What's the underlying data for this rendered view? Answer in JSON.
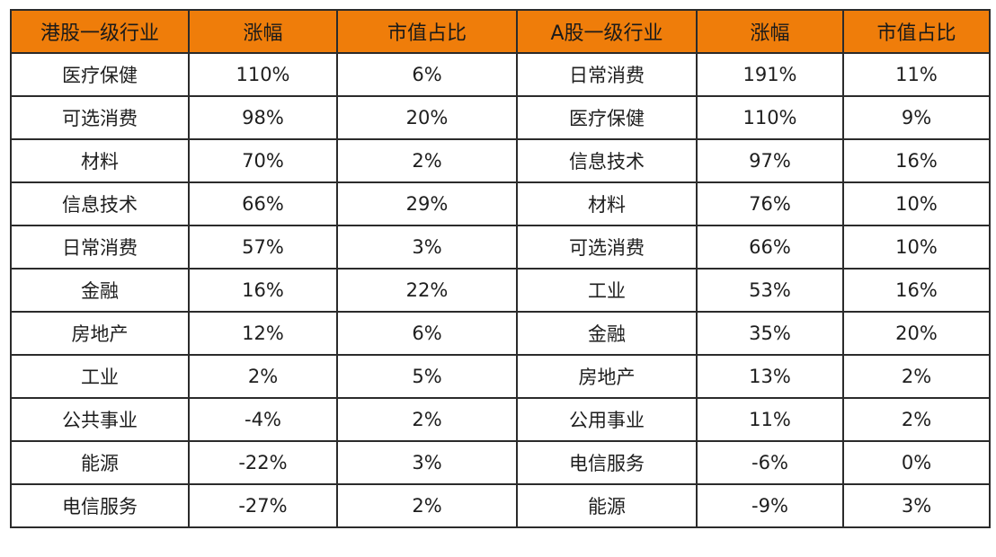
{
  "accent_color": "#ef7d0a",
  "header": {
    "hk_industry": "港股一级行业",
    "hk_change": "涨幅",
    "hk_cap_share": "市值占比",
    "a_industry": "A股一级行业",
    "a_change": "涨幅",
    "a_cap_share": "市值占比"
  },
  "rows": [
    {
      "hk_industry": "医疗保健",
      "hk_change": "110%",
      "hk_cap_share": "6%",
      "a_industry": "日常消费",
      "a_change": "191%",
      "a_cap_share": "11%"
    },
    {
      "hk_industry": "可选消费",
      "hk_change": "98%",
      "hk_cap_share": "20%",
      "a_industry": "医疗保健",
      "a_change": "110%",
      "a_cap_share": "9%"
    },
    {
      "hk_industry": "材料",
      "hk_change": "70%",
      "hk_cap_share": "2%",
      "a_industry": "信息技术",
      "a_change": "97%",
      "a_cap_share": "16%"
    },
    {
      "hk_industry": "信息技术",
      "hk_change": "66%",
      "hk_cap_share": "29%",
      "a_industry": "材料",
      "a_change": "76%",
      "a_cap_share": "10%"
    },
    {
      "hk_industry": "日常消费",
      "hk_change": "57%",
      "hk_cap_share": "3%",
      "a_industry": "可选消费",
      "a_change": "66%",
      "a_cap_share": "10%"
    },
    {
      "hk_industry": "金融",
      "hk_change": "16%",
      "hk_cap_share": "22%",
      "a_industry": "工业",
      "a_change": "53%",
      "a_cap_share": "16%"
    },
    {
      "hk_industry": "房地产",
      "hk_change": "12%",
      "hk_cap_share": "6%",
      "a_industry": "金融",
      "a_change": "35%",
      "a_cap_share": "20%"
    },
    {
      "hk_industry": "工业",
      "hk_change": "2%",
      "hk_cap_share": "5%",
      "a_industry": "房地产",
      "a_change": "13%",
      "a_cap_share": "2%"
    },
    {
      "hk_industry": "公共事业",
      "hk_change": "-4%",
      "hk_cap_share": "2%",
      "a_industry": "公用事业",
      "a_change": "11%",
      "a_cap_share": "2%"
    },
    {
      "hk_industry": "能源",
      "hk_change": "-22%",
      "hk_cap_share": "3%",
      "a_industry": "电信服务",
      "a_change": "-6%",
      "a_cap_share": "0%"
    },
    {
      "hk_industry": "电信服务",
      "hk_change": "-27%",
      "hk_cap_share": "2%",
      "a_industry": "能源",
      "a_change": "-9%",
      "a_cap_share": "3%"
    }
  ]
}
